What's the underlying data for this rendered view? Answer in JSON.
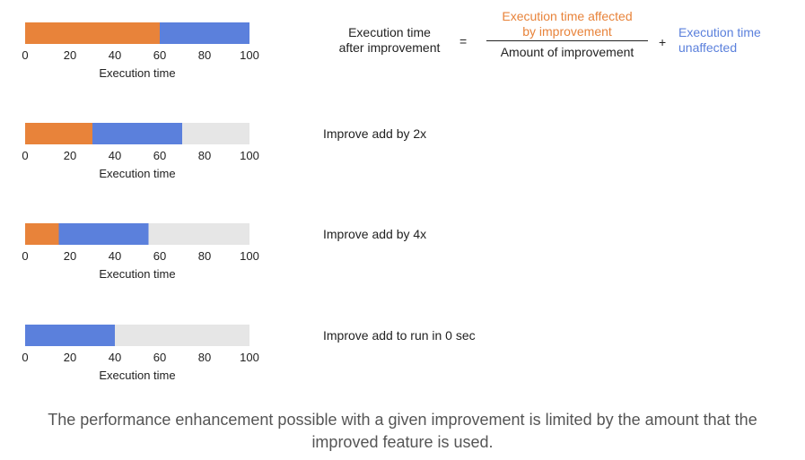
{
  "formula": {
    "lhs_line1": "Execution time",
    "lhs_line2": "after improvement",
    "equals": "=",
    "numerator_line1": "Execution time affected",
    "numerator_line2": "by improvement",
    "denominator": "Amount of improvement",
    "plus": "+",
    "unaffected_line1": "Execution time",
    "unaffected_line2": "unaffected",
    "colors": {
      "affected": "#e8833a",
      "unaffected": "#5b80dc",
      "text": "#222222"
    }
  },
  "captions": [
    "",
    "Improve add by 2x",
    "Improve add by 4x",
    "Improve add to run in 0 sec"
  ],
  "footer": "The performance enhancement possible with a given improvement is limited by the amount that the improved feature is used.",
  "chart_data": [
    {
      "type": "bar",
      "orientation": "horizontal",
      "stacked": true,
      "xlabel": "Execution time",
      "xlim": [
        0,
        100
      ],
      "ticks": [
        0,
        20,
        40,
        60,
        80,
        100
      ],
      "series": [
        {
          "name": "Execution time affected by improvement",
          "value": 60,
          "color": "#e8833a"
        },
        {
          "name": "Execution time unaffected",
          "value": 40,
          "color": "#5b80dc"
        },
        {
          "name": "",
          "value": 0,
          "color": "#e6e6e6"
        }
      ]
    },
    {
      "type": "bar",
      "orientation": "horizontal",
      "stacked": true,
      "xlabel": "Execution time",
      "xlim": [
        0,
        100
      ],
      "ticks": [
        0,
        20,
        40,
        60,
        80,
        100
      ],
      "series": [
        {
          "name": "Execution time affected by improvement",
          "value": 30,
          "color": "#e8833a"
        },
        {
          "name": "Execution time unaffected",
          "value": 40,
          "color": "#5b80dc"
        },
        {
          "name": "",
          "value": 30,
          "color": "#e6e6e6"
        }
      ]
    },
    {
      "type": "bar",
      "orientation": "horizontal",
      "stacked": true,
      "xlabel": "Execution time",
      "xlim": [
        0,
        100
      ],
      "ticks": [
        0,
        20,
        40,
        60,
        80,
        100
      ],
      "series": [
        {
          "name": "Execution time affected by improvement",
          "value": 15,
          "color": "#e8833a"
        },
        {
          "name": "Execution time unaffected",
          "value": 40,
          "color": "#5b80dc"
        },
        {
          "name": "",
          "value": 45,
          "color": "#e6e6e6"
        }
      ]
    },
    {
      "type": "bar",
      "orientation": "horizontal",
      "stacked": true,
      "xlabel": "Execution time",
      "xlim": [
        0,
        100
      ],
      "ticks": [
        0,
        20,
        40,
        60,
        80,
        100
      ],
      "series": [
        {
          "name": "Execution time affected by improvement",
          "value": 0,
          "color": "#e8833a"
        },
        {
          "name": "Execution time unaffected",
          "value": 40,
          "color": "#5b80dc"
        },
        {
          "name": "",
          "value": 60,
          "color": "#e6e6e6"
        }
      ]
    }
  ]
}
